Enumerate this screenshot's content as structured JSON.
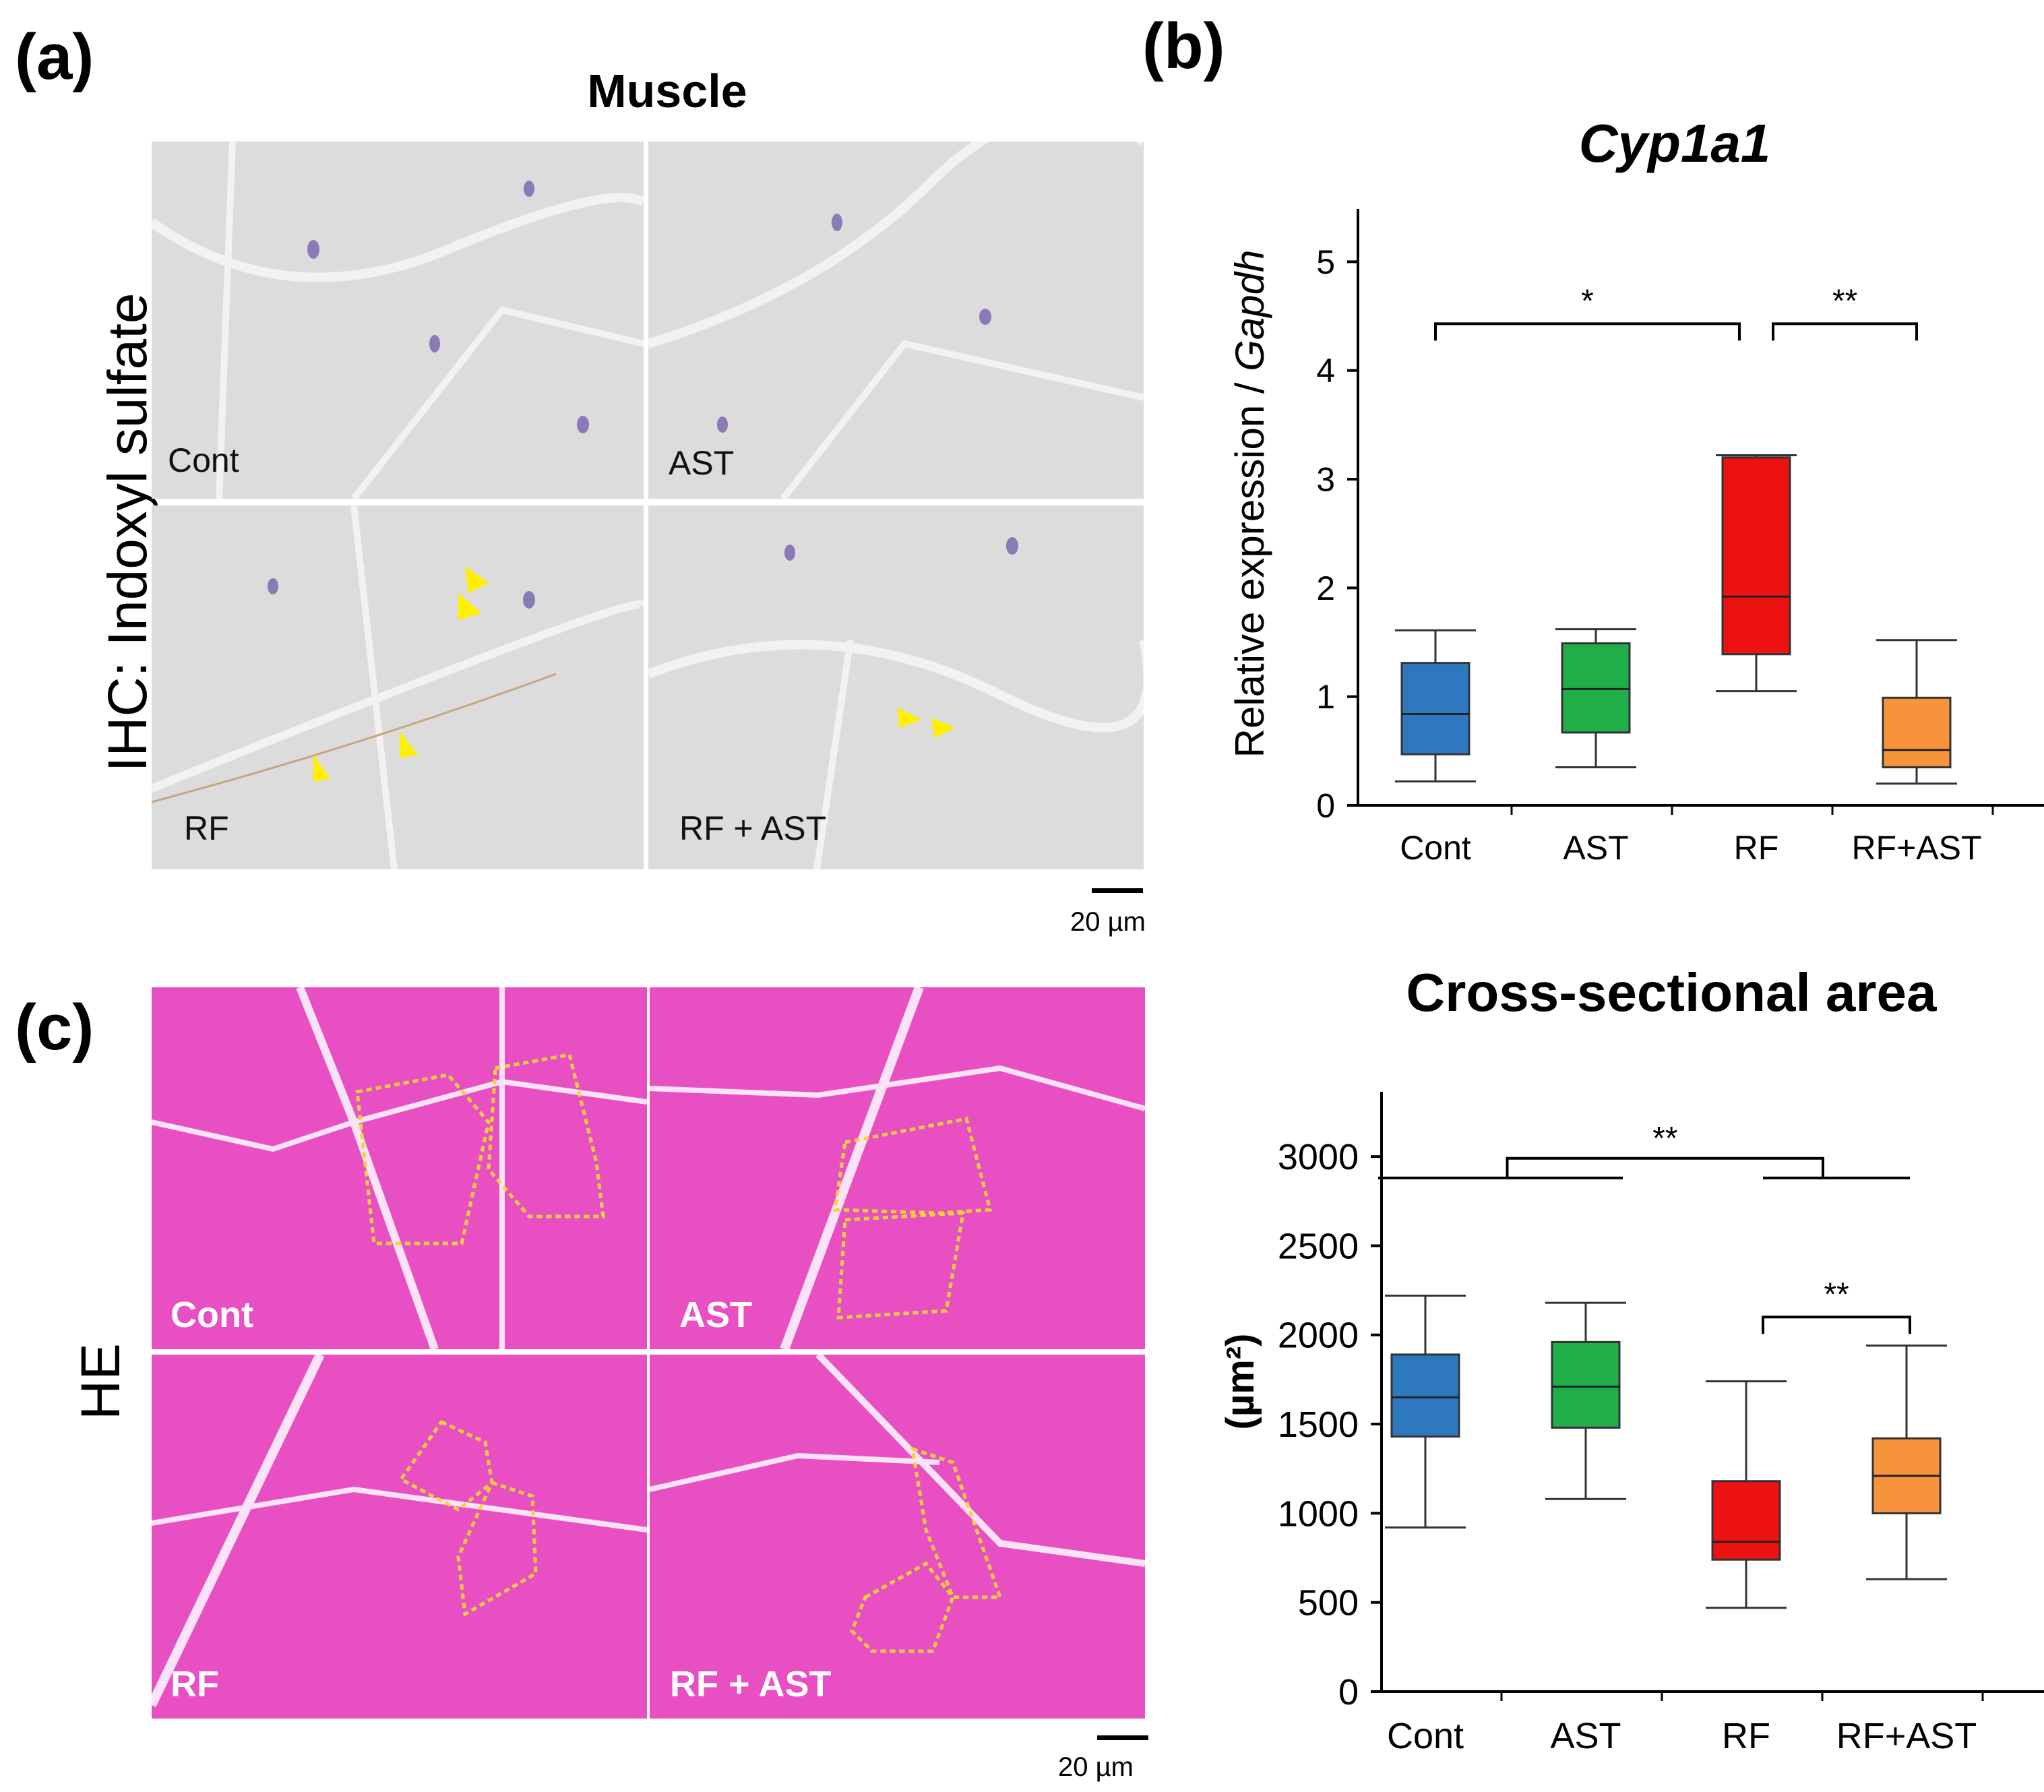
{
  "panel_a": {
    "letter": "(a)",
    "title": "Muscle",
    "side_label": "IHC: Indoxyl  sulfate",
    "images": [
      {
        "label": "Cont"
      },
      {
        "label": "AST"
      },
      {
        "label": "RF"
      },
      {
        "label": "RF + AST"
      }
    ],
    "scale_label": "20 µm"
  },
  "panel_b": {
    "letter": "(b)"
  },
  "panel_c": {
    "letter": "(c)",
    "side_label": "HE",
    "images": [
      {
        "label": "Cont"
      },
      {
        "label": "AST"
      },
      {
        "label": "RF"
      },
      {
        "label": "RF + AST"
      }
    ],
    "scale_label": "20 µm"
  },
  "colors": {
    "cont": "#2e78bf",
    "ast": "#1fae48",
    "rf": "#ee1111",
    "rf_ast": "#f7943b",
    "ihc_bg": "#dcdcdc",
    "he_bg": "#e84fc3",
    "arrow": "#ffef00",
    "outline": "#f5d23a"
  },
  "chart_data": [
    {
      "type": "boxplot",
      "title": "Cyp1a1",
      "ylabel_prefix": "Relative expression / ",
      "ylabel_italic": "Gapdh",
      "xlabel": "",
      "ylim": [
        0,
        5.3
      ],
      "yticks": [
        0,
        1,
        2,
        3,
        4,
        5
      ],
      "categories": [
        "Cont",
        "AST",
        "RF",
        "RF+AST"
      ],
      "series": [
        {
          "name": "Cont",
          "min": 0.22,
          "q1": 0.47,
          "median": 0.84,
          "q3": 1.31,
          "max": 1.61
        },
        {
          "name": "AST",
          "min": 0.35,
          "q1": 0.67,
          "median": 1.07,
          "q3": 1.49,
          "max": 1.62
        },
        {
          "name": "RF",
          "min": 1.05,
          "q1": 1.39,
          "median": 1.92,
          "q3": 3.2,
          "max": 3.22
        },
        {
          "name": "RF+AST",
          "min": 0.2,
          "q1": 0.35,
          "median": 0.51,
          "q3": 0.99,
          "max": 1.52
        }
      ],
      "significance": [
        {
          "from": "Cont",
          "to": "RF",
          "label": "*",
          "y": 4.43
        },
        {
          "from": "RF",
          "to": "RF+AST",
          "label": "**",
          "y": 4.43
        }
      ]
    },
    {
      "type": "boxplot",
      "title": "Cross-sectional area",
      "ylabel": "(µm²)",
      "ylim": [
        0,
        3250
      ],
      "yticks": [
        0,
        500,
        1000,
        1500,
        2000,
        2500,
        3000
      ],
      "categories": [
        "Cont",
        "AST",
        "RF",
        "RF+AST"
      ],
      "series": [
        {
          "name": "Cont",
          "min": 920,
          "q1": 1430,
          "median": 1650,
          "q3": 1890,
          "max": 2220
        },
        {
          "name": "AST",
          "min": 1080,
          "q1": 1480,
          "median": 1710,
          "q3": 1960,
          "max": 2180
        },
        {
          "name": "RF",
          "min": 470,
          "q1": 740,
          "median": 840,
          "q3": 1180,
          "max": 1740
        },
        {
          "name": "RF+AST",
          "min": 630,
          "q1": 1000,
          "median": 1210,
          "q3": 1420,
          "max": 1940
        }
      ],
      "significance": [
        {
          "from": "Cont+AST",
          "to": "RF+RF+AST",
          "label": "**",
          "y": 2990
        },
        {
          "from": "RF",
          "to": "RF+AST",
          "label": "**",
          "y": 2100
        }
      ]
    }
  ]
}
